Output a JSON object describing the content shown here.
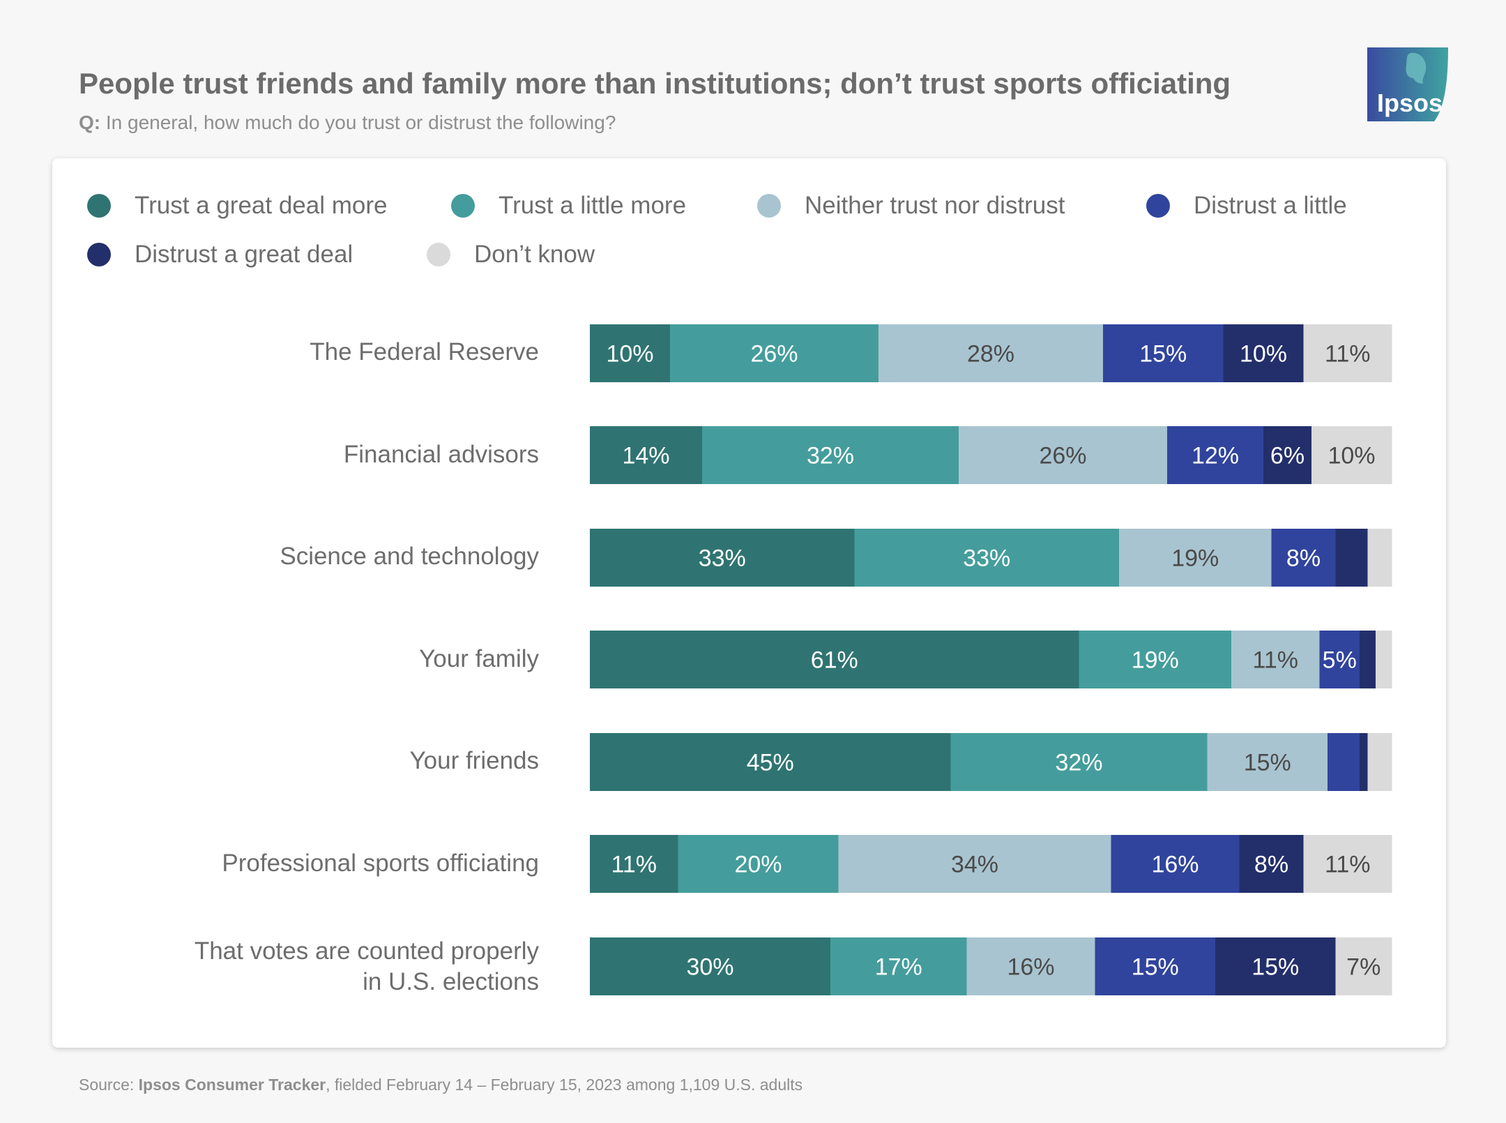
{
  "header": {
    "title": "People trust friends and family more than institutions; don’t trust sports officiating",
    "question_prefix": "Q:",
    "question": "In general, how much do you trust or distrust the following?"
  },
  "logo": {
    "text": "Ipsos",
    "colors": [
      "#3a4ba0",
      "#3fa3a0"
    ]
  },
  "source": {
    "prefix": "Source:",
    "name": "Ipsos Consumer Tracker",
    "suffix": ", fielded February 14 – February 15, 2023 among 1,109 U.S. adults"
  },
  "legend": [
    {
      "label": "Trust a great deal more",
      "color": "#2f7472"
    },
    {
      "label": "Trust a little more",
      "color": "#449d9c"
    },
    {
      "label": "Neither trust nor distrust",
      "color": "#a8c4d0"
    },
    {
      "label": "Distrust a little",
      "color": "#30449d"
    },
    {
      "label": "Distrust a great deal",
      "color": "#232f6b"
    },
    {
      "label": "Don’t know",
      "color": "#dadada"
    }
  ],
  "chart_data": {
    "type": "bar",
    "orientation": "horizontal",
    "stacked": true,
    "title": "People trust friends and family more than institutions; don’t trust sports officiating",
    "subtitle": "Q: In general, how much do you trust or distrust the following?",
    "xlim": [
      0,
      100
    ],
    "unit": "%",
    "grid": false,
    "legend_position": "top",
    "categories": [
      "The Federal Reserve",
      "Financial advisors",
      "Science and technology",
      "Your family",
      "Your friends",
      "Professional sports officiating",
      "That votes are counted properly in U.S. elections"
    ],
    "series": [
      {
        "name": "Trust a great deal more",
        "values": [
          10,
          14,
          33,
          61,
          45,
          11,
          30
        ]
      },
      {
        "name": "Trust a little more",
        "values": [
          26,
          32,
          33,
          19,
          32,
          20,
          17
        ]
      },
      {
        "name": "Neither trust nor distrust",
        "values": [
          28,
          26,
          19,
          11,
          15,
          34,
          16
        ]
      },
      {
        "name": "Distrust a little",
        "values": [
          15,
          12,
          8,
          5,
          4,
          16,
          15
        ]
      },
      {
        "name": "Distrust a great deal",
        "values": [
          10,
          6,
          4,
          2,
          1,
          8,
          15
        ]
      },
      {
        "name": "Don’t know",
        "values": [
          11,
          10,
          3,
          2,
          3,
          11,
          7
        ]
      }
    ],
    "data_labels": [
      [
        "10%",
        "26%",
        "28%",
        "15%",
        "10%",
        "11%"
      ],
      [
        "14%",
        "32%",
        "26%",
        "12%",
        "6%",
        "10%"
      ],
      [
        "33%",
        "33%",
        "19%",
        "8%",
        "",
        ""
      ],
      [
        "61%",
        "19%",
        "11%",
        "5%",
        "",
        ""
      ],
      [
        "45%",
        "32%",
        "15%",
        "",
        "",
        ""
      ],
      [
        "11%",
        "20%",
        "34%",
        "16%",
        "8%",
        "11%"
      ],
      [
        "30%",
        "17%",
        "16%",
        "15%",
        "15%",
        "7%"
      ]
    ],
    "label_colors": [
      "#ffffff",
      "#ffffff",
      "#4a4a4a",
      "#ffffff",
      "#ffffff",
      "#4a4a4a"
    ]
  }
}
